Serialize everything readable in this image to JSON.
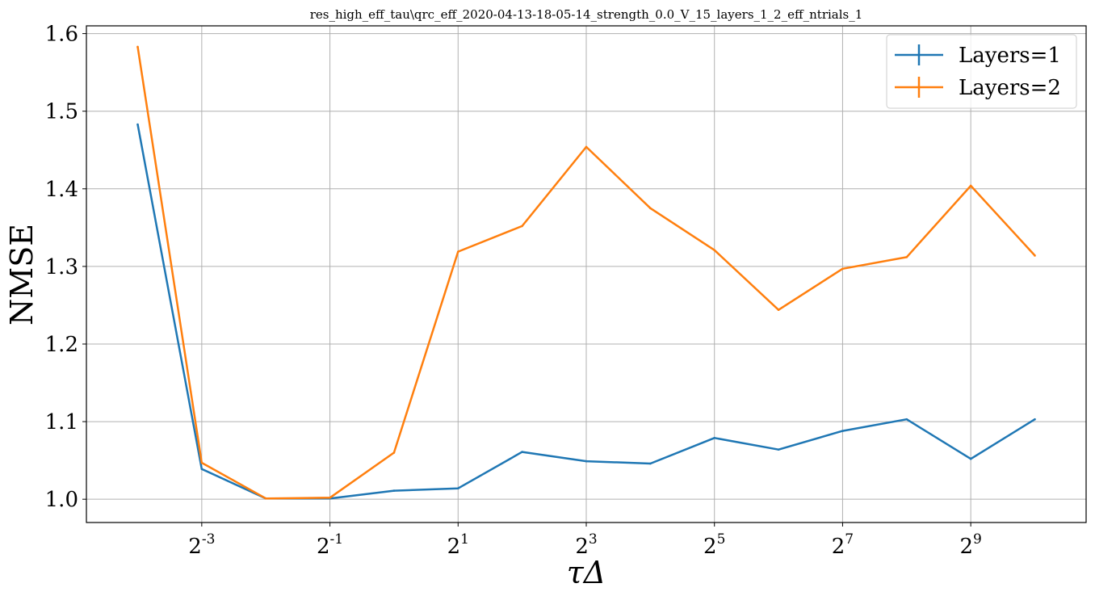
{
  "chart_data": {
    "type": "line",
    "title": "res_high_eff_tau\\qrc_eff_2020-04-13-18-05-14_strength_0.0_V_15_layers_1_2_eff_ntrials_1",
    "xlabel": "τΔ",
    "ylabel": "NMSE",
    "x_scale": "log2",
    "x": [
      0.0625,
      0.125,
      0.25,
      0.5,
      1,
      2,
      4,
      8,
      16,
      32,
      64,
      128,
      256,
      512,
      1024
    ],
    "x_ticks": [
      {
        "value": 0.125,
        "base": "2",
        "exp": "-3"
      },
      {
        "value": 0.5,
        "base": "2",
        "exp": "-1"
      },
      {
        "value": 2,
        "base": "2",
        "exp": "1"
      },
      {
        "value": 8,
        "base": "2",
        "exp": "3"
      },
      {
        "value": 32,
        "base": "2",
        "exp": "5"
      },
      {
        "value": 128,
        "base": "2",
        "exp": "7"
      },
      {
        "value": 512,
        "base": "2",
        "exp": "9"
      }
    ],
    "ylim": [
      0.97,
      1.61
    ],
    "y_ticks": [
      "1.0",
      "1.1",
      "1.2",
      "1.3",
      "1.4",
      "1.5",
      "1.6"
    ],
    "grid": true,
    "legend_position": "top-right",
    "series": [
      {
        "name": "Layers=1",
        "color": "#1f77b4",
        "values": [
          1.483,
          1.039,
          1.001,
          1.001,
          1.011,
          1.014,
          1.061,
          1.049,
          1.046,
          1.079,
          1.064,
          1.088,
          1.103,
          1.052,
          1.103
        ]
      },
      {
        "name": "Layers=2",
        "color": "#ff7f0e",
        "values": [
          1.583,
          1.047,
          1.001,
          1.002,
          1.06,
          1.319,
          1.352,
          1.454,
          1.375,
          1.321,
          1.244,
          1.297,
          1.312,
          1.404,
          1.314
        ]
      }
    ]
  }
}
